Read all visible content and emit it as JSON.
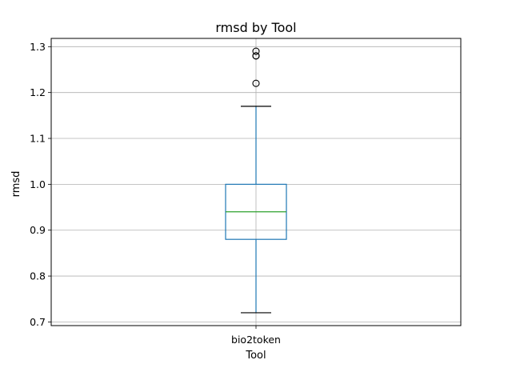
{
  "chart_data": {
    "type": "box",
    "title": "rmsd by Tool",
    "xlabel": "Tool",
    "ylabel": "rmsd",
    "ylim": [
      0.692,
      1.318
    ],
    "yticks": [
      "0.7",
      "0.8",
      "0.9",
      "1.0",
      "1.1",
      "1.2",
      "1.3"
    ],
    "grid": true,
    "categories": [
      "bio2token"
    ],
    "boxes": [
      {
        "category": "bio2token",
        "whisker_low": 0.72,
        "q1": 0.88,
        "median": 0.94,
        "q3": 1.0,
        "whisker_high": 1.17,
        "outliers": [
          1.22,
          1.28,
          1.28,
          1.29
        ]
      }
    ],
    "colors": {
      "box": "#1f77b4",
      "median": "#2ca02c",
      "whisker_cap": "#000000",
      "outlier": "#000000",
      "grid": "#b0b0b0"
    }
  }
}
